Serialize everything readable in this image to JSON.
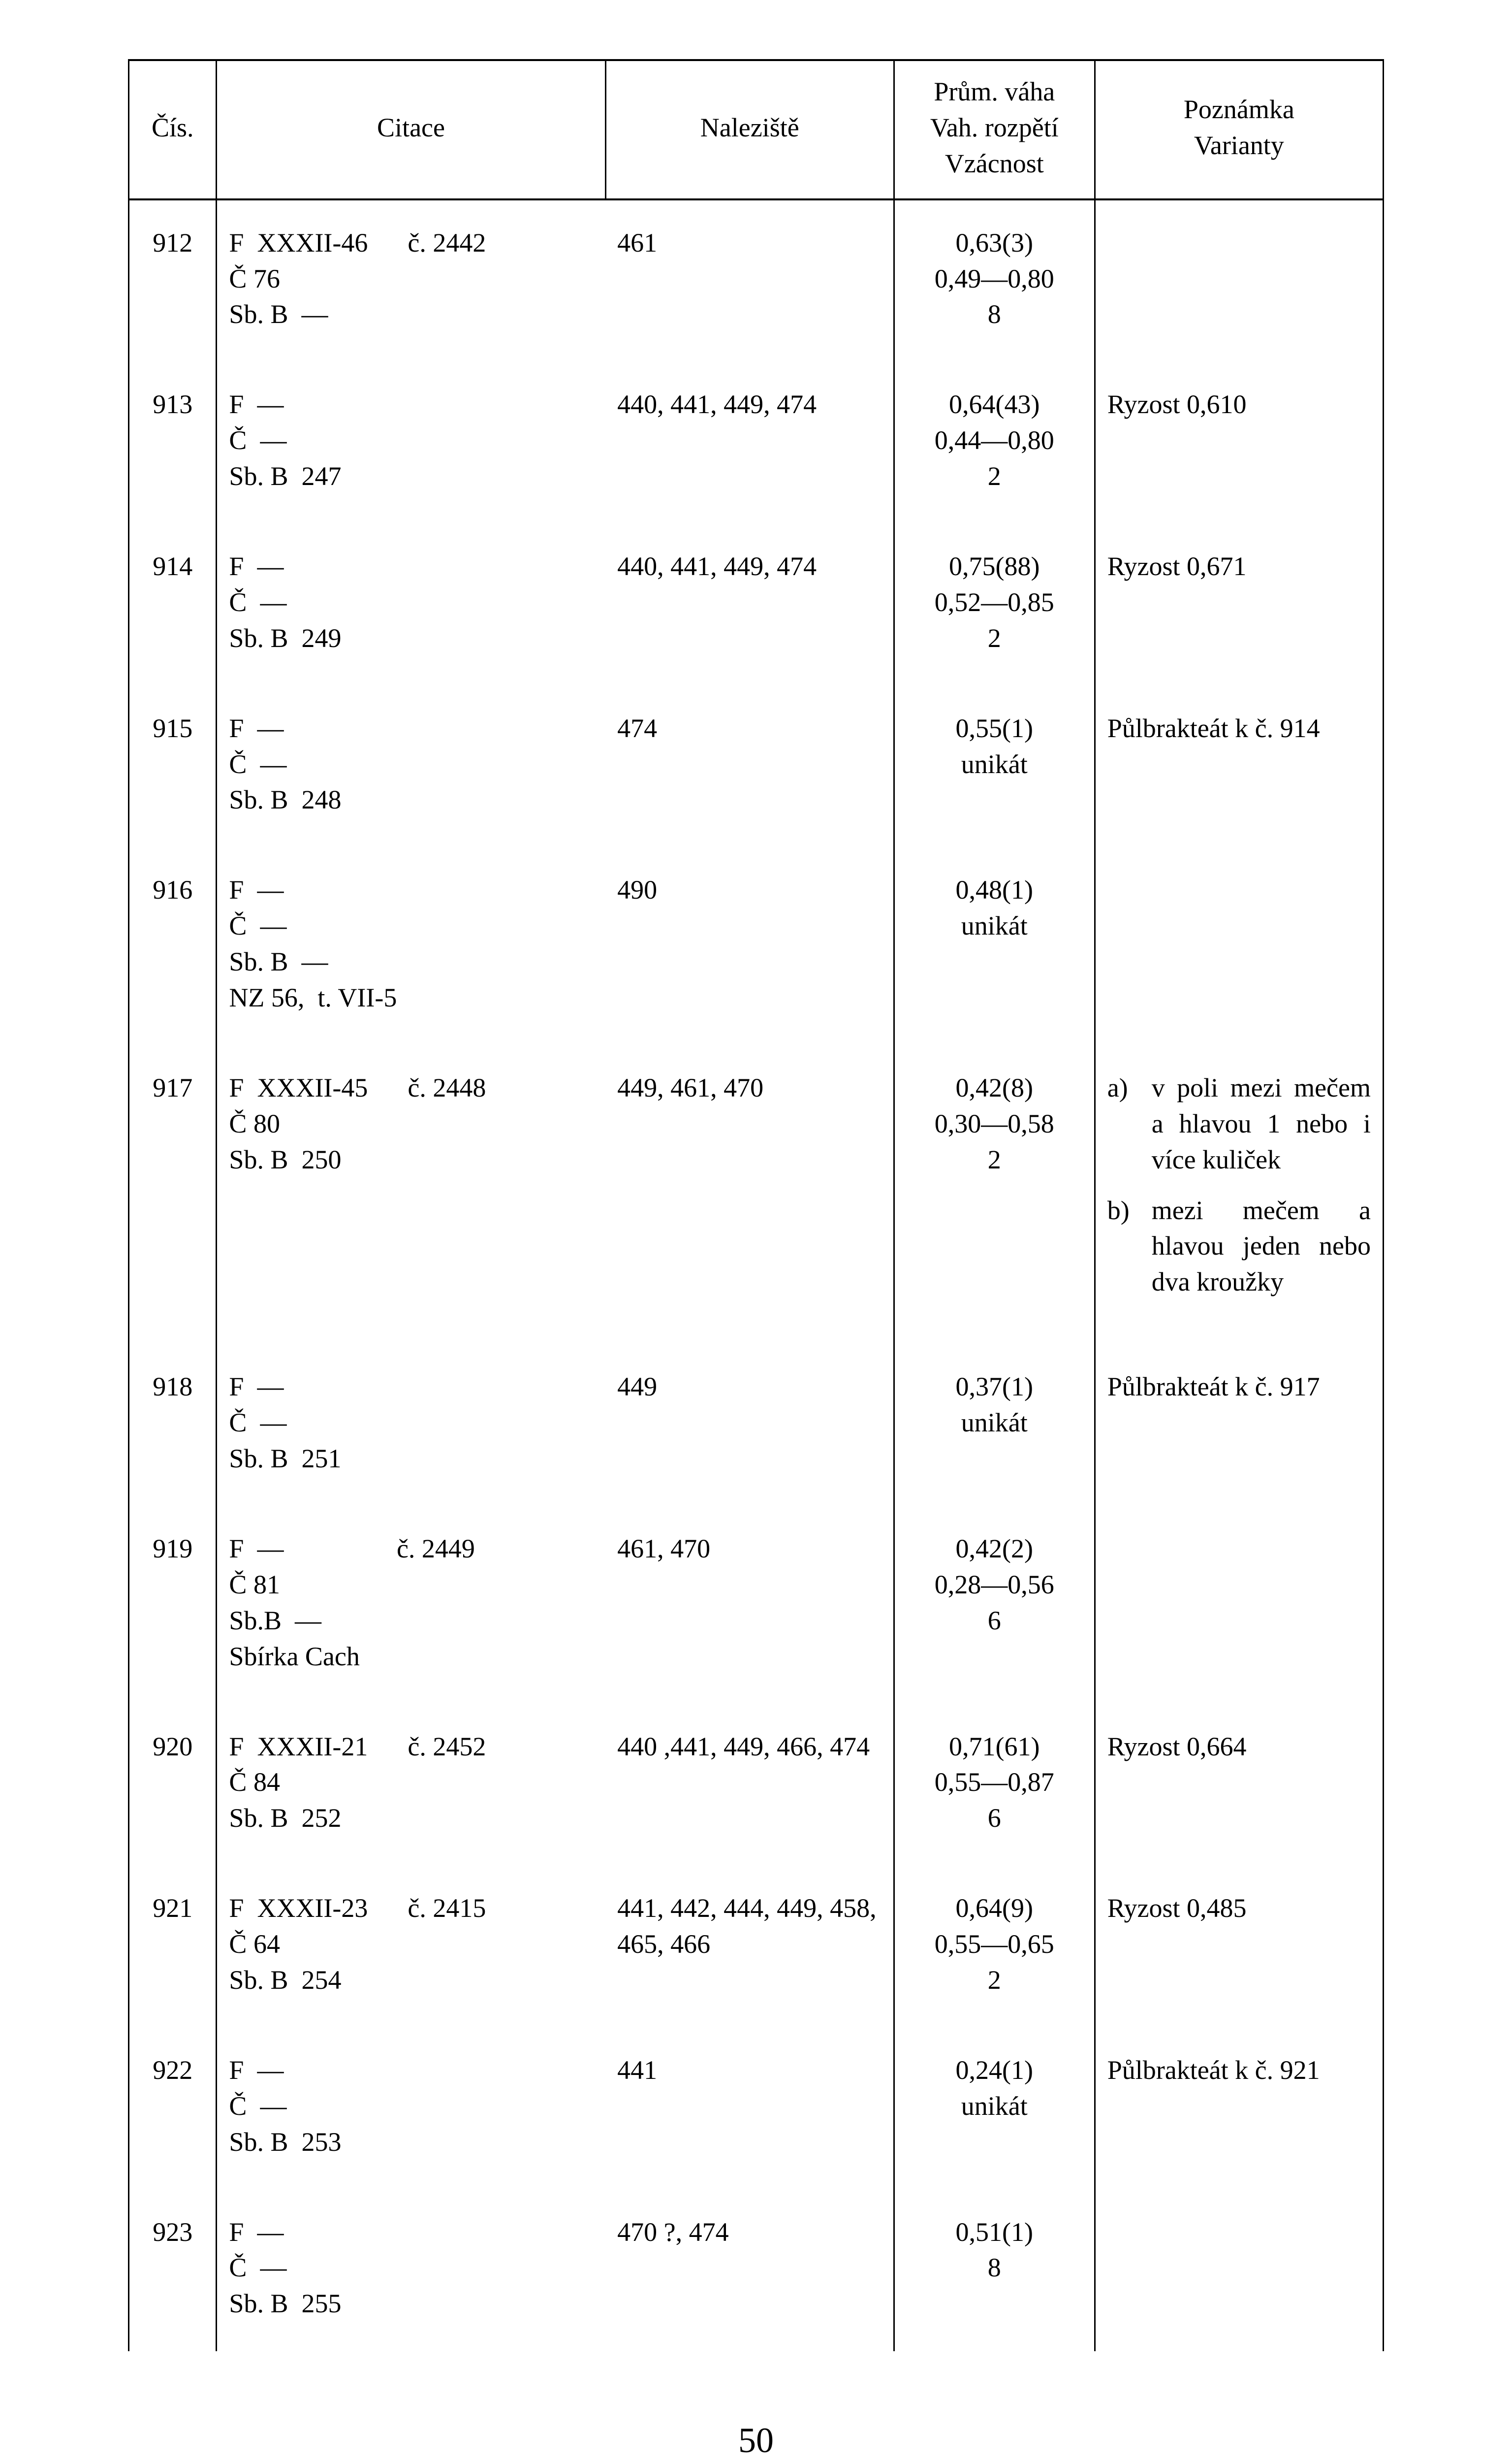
{
  "page_number": "50",
  "headers": {
    "cis": "Čís.",
    "citace": "Citace",
    "naleziste": "Naleziště",
    "vaha": "Prům. váha\nVah. rozpětí\nVzácnost",
    "poznamka": "Poznámka\nVarianty"
  },
  "rows": [
    {
      "cis": "912",
      "citace": "F  XXXII-46      č. 2442\nČ 76\nSb. B  —",
      "naleziste": "461",
      "vaha": "0,63(3)\n0,49—0,80\n8",
      "poznamka": ""
    },
    {
      "cis": "913",
      "citace": "F  —\nČ  —\nSb. B  247",
      "naleziste": "440, 441, 449, 474",
      "vaha": "0,64(43)\n0,44—0,80\n2",
      "poznamka": "Ryzost  0,610"
    },
    {
      "cis": "914",
      "citace": "F  —\nČ  —\nSb. B  249",
      "naleziste": "440, 441, 449, 474",
      "vaha": "0,75(88)\n0,52—0,85\n2",
      "poznamka": "Ryzost  0,671"
    },
    {
      "cis": "915",
      "citace": "F  —\nČ  —\nSb. B  248",
      "naleziste": "474",
      "vaha": "0,55(1)\nunikát",
      "poznamka": "Půlbrakteát k č. 914"
    },
    {
      "cis": "916",
      "citace": "F  —\nČ  —\nSb. B  —\nNZ 56,  t. VII-5",
      "naleziste": "490",
      "vaha": "0,48(1)\nunikát",
      "poznamka": ""
    },
    {
      "cis": "917",
      "citace": "F  XXXII-45      č. 2448\nČ 80\nSb. B  250",
      "naleziste": "449, 461, 470",
      "vaha": "0,42(8)\n0,30—0,58\n2",
      "poznamka_list": [
        {
          "mark": "a)",
          "text": "v poli mezi me­čem a hlavou 1 nebo i více kuli­ček"
        },
        {
          "mark": "b)",
          "text": "mezi mečem a hlavou jeden ne­bo dva kroužky"
        }
      ]
    },
    {
      "cis": "918",
      "citace": "F  —\nČ  —\nSb. B  251",
      "naleziste": "449",
      "vaha": "0,37(1)\nunikát",
      "poznamka": "Půlbrakteát k č. 917"
    },
    {
      "cis": "919",
      "citace": "F  —                 č. 2449\nČ 81\nSb.B  —\nSbírka Cach",
      "naleziste": "461, 470",
      "vaha": "0,42(2)\n0,28—0,56\n6",
      "poznamka": ""
    },
    {
      "cis": "920",
      "citace": "F  XXXII-21      č. 2452\nČ 84\nSb. B  252",
      "naleziste": "440 ,441, 449, 466, 474",
      "vaha": "0,71(61)\n0,55—0,87\n6",
      "poznamka": "Ryzost  0,664"
    },
    {
      "cis": "921",
      "citace": "F  XXXII-23      č. 2415\nČ 64\nSb. B  254",
      "naleziste": "441, 442, 444, 449, 458, 465, 466",
      "vaha": "0,64(9)\n0,55—0,65\n2",
      "poznamka": "Ryzost  0,485"
    },
    {
      "cis": "922",
      "citace": "F  —\nČ  —\nSb. B  253",
      "naleziste": "441",
      "vaha": "0,24(1)\nunikát",
      "poznamka": "Půlbrakteát k č. 921"
    },
    {
      "cis": "923",
      "citace": "F  —\nČ  —\nSb. B  255",
      "naleziste": "470 ?,  474",
      "vaha": "0,51(1)\n8",
      "poznamka": ""
    }
  ]
}
